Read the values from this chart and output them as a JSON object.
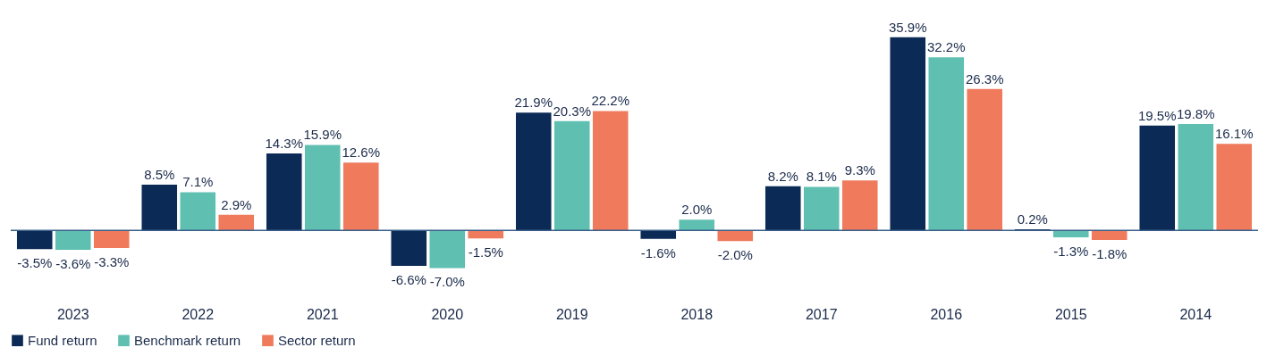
{
  "chart_data": {
    "type": "bar",
    "categories": [
      "2023",
      "2022",
      "2021",
      "2020",
      "2019",
      "2018",
      "2017",
      "2016",
      "2015",
      "2014"
    ],
    "series": [
      {
        "name": "Fund return",
        "color": "#0b2a55",
        "values": [
          -3.5,
          8.5,
          14.3,
          -6.6,
          21.9,
          -1.6,
          8.2,
          35.9,
          0.2,
          19.5
        ],
        "value_labels": [
          "-3.5%",
          "8.5%",
          "14.3%",
          "-6.6%",
          "21.9%",
          "-1.6%",
          "8.2%",
          "35.9%",
          "0.2%",
          "19.5%"
        ]
      },
      {
        "name": "Benchmark return",
        "color": "#5fbfb1",
        "values": [
          -3.6,
          7.1,
          15.9,
          -7.0,
          20.3,
          2.0,
          8.1,
          32.2,
          -1.3,
          19.8
        ],
        "value_labels": [
          "-3.6%",
          "7.1%",
          "15.9%",
          "-7.0%",
          "20.3%",
          "2.0%",
          "8.1%",
          "32.2%",
          "-1.3%",
          "19.8%"
        ]
      },
      {
        "name": "Sector return",
        "color": "#ef7a5c",
        "values": [
          -3.3,
          2.9,
          12.6,
          -1.5,
          22.2,
          -2.0,
          9.3,
          26.3,
          -1.8,
          16.1
        ],
        "value_labels": [
          "-3.3%",
          "2.9%",
          "12.6%",
          "-1.5%",
          "22.2%",
          "-2.0%",
          "9.3%",
          "26.3%",
          "-1.8%",
          "16.1%"
        ]
      }
    ],
    "ref_lines": [
      {
        "axis": "y",
        "value": 0,
        "color": "#3a5f8a"
      }
    ],
    "legend": "bottom left",
    "tick_labels": "x"
  }
}
